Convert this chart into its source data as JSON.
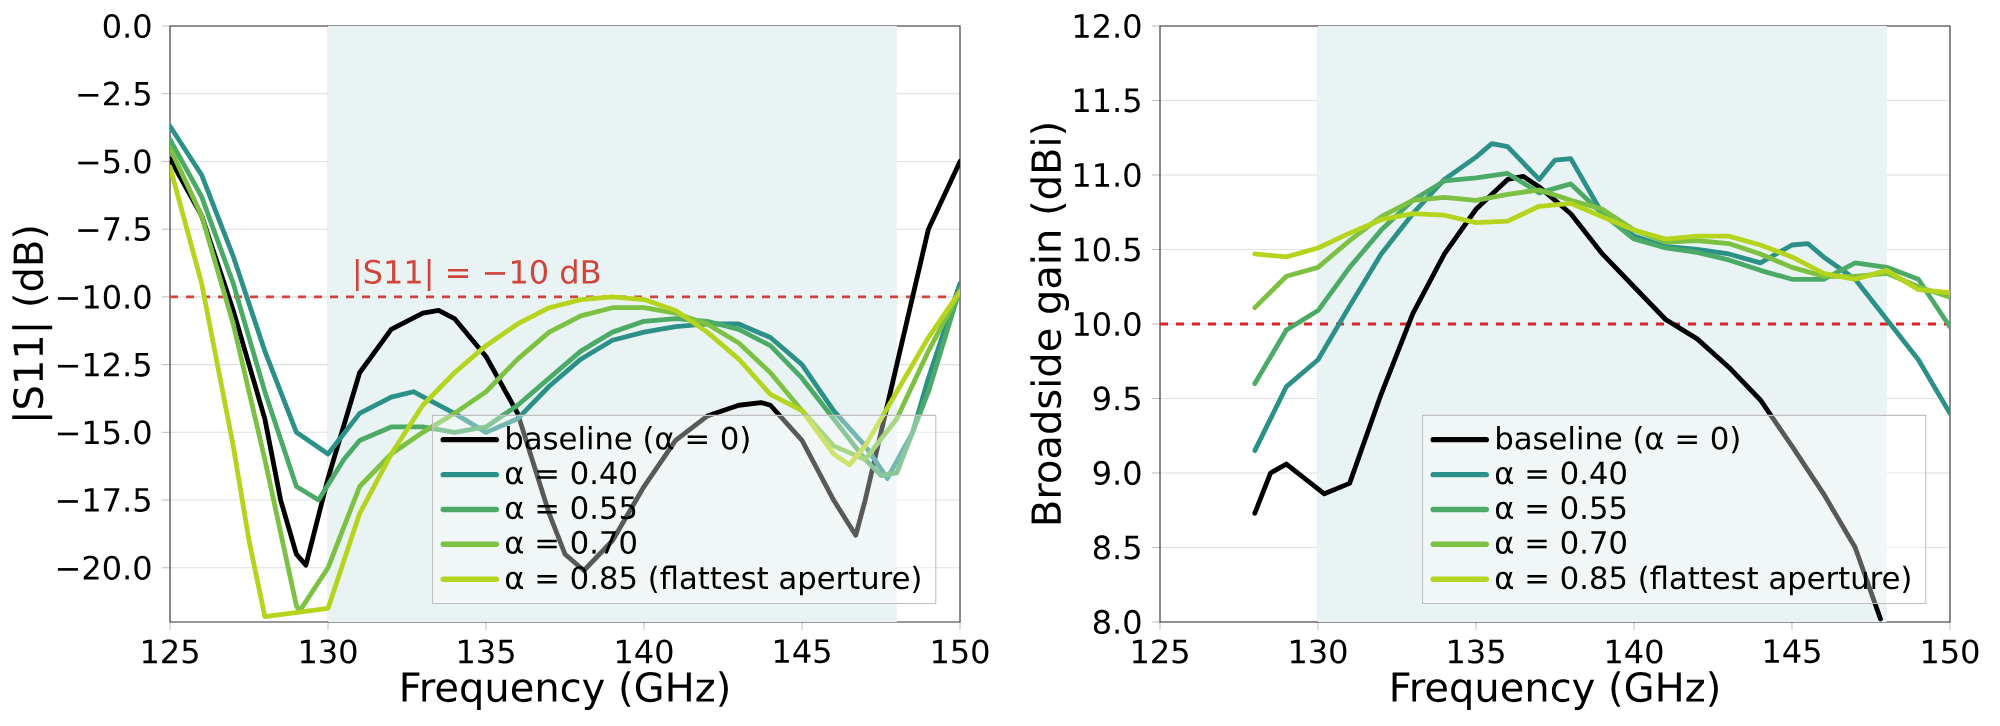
{
  "chart_data": [
    {
      "type": "line",
      "xlabel": "Frequency (GHz)",
      "ylabel": "|S11| (dB)",
      "xlim": [
        125,
        150
      ],
      "ylim": [
        -22,
        0
      ],
      "xticks": [
        125,
        130,
        135,
        140,
        145,
        150
      ],
      "yticks": [
        {
          "value": 0,
          "label": "0.0"
        },
        {
          "value": -2.5,
          "label": "−2.5"
        },
        {
          "value": -5,
          "label": "−5.0"
        },
        {
          "value": -7.5,
          "label": "−7.5"
        },
        {
          "value": -10,
          "label": "−10.0"
        },
        {
          "value": -12.5,
          "label": "−12.5"
        },
        {
          "value": -15,
          "label": "−15.0"
        },
        {
          "value": -17.5,
          "label": "−17.5"
        },
        {
          "value": -20,
          "label": "−20.0"
        }
      ],
      "grid": true,
      "legend": "bottom right",
      "bands": [
        {
          "axis": "x",
          "from": 130,
          "to": 148,
          "color": "#eaf3f3"
        }
      ],
      "ref_lines": [
        {
          "axis": "y",
          "value": -10,
          "label": "|S11| = −10 dB",
          "color": "#d0443a",
          "line_style": "dashed"
        }
      ],
      "series": [
        {
          "name": "baseline (α = 0)",
          "color": "#000000",
          "x": [
            125,
            126,
            127,
            128,
            128.5,
            129,
            129.3,
            130,
            131,
            132,
            133,
            133.5,
            134,
            135,
            136,
            137,
            137.5,
            138.1,
            139,
            140,
            141,
            142,
            143,
            143.7,
            144,
            145,
            146,
            146.7,
            147,
            148,
            149,
            150
          ],
          "values": [
            -4.9,
            -7.0,
            -10.5,
            -14.5,
            -17.5,
            -19.5,
            -19.9,
            -16.7,
            -12.8,
            -11.2,
            -10.6,
            -10.5,
            -10.8,
            -12.2,
            -14.3,
            -18.0,
            -19.5,
            -20.1,
            -19.0,
            -17.0,
            -15.3,
            -14.4,
            -14.0,
            -13.9,
            -14.0,
            -15.3,
            -17.5,
            -18.8,
            -17.5,
            -12.5,
            -7.5,
            -5.0
          ]
        },
        {
          "name": "α = 0.40",
          "color": "#2a9088",
          "x": [
            125,
            126,
            127,
            128,
            129,
            130,
            131,
            132,
            132.7,
            134,
            135,
            136,
            137,
            138,
            139,
            140,
            141,
            142,
            143,
            144,
            145,
            146,
            147,
            147.7,
            148.5,
            149,
            150
          ],
          "values": [
            -3.7,
            -5.5,
            -8.5,
            -12.0,
            -15.0,
            -15.8,
            -14.3,
            -13.7,
            -13.5,
            -14.3,
            -15.0,
            -14.5,
            -13.3,
            -12.3,
            -11.6,
            -11.3,
            -11.1,
            -11.0,
            -11.0,
            -11.5,
            -12.5,
            -14.2,
            -15.5,
            -16.7,
            -15.0,
            -13.0,
            -9.5
          ]
        },
        {
          "name": "α = 0.55",
          "color": "#4aaa66",
          "x": [
            125,
            126,
            127,
            128,
            129,
            129.7,
            130.5,
            131,
            132,
            133,
            134,
            135,
            136,
            137,
            138,
            139,
            140,
            141,
            142,
            143,
            144,
            145,
            146,
            147,
            147.5,
            148,
            149,
            150
          ],
          "values": [
            -4.2,
            -6.3,
            -9.5,
            -13.5,
            -17.0,
            -17.5,
            -16.0,
            -15.3,
            -14.8,
            -14.8,
            -15.0,
            -14.8,
            -14.0,
            -13.0,
            -12.0,
            -11.3,
            -10.9,
            -10.8,
            -10.9,
            -11.2,
            -11.8,
            -13.0,
            -14.5,
            -16.0,
            -16.6,
            -16.5,
            -13.5,
            -9.7
          ]
        },
        {
          "name": "α = 0.70",
          "color": "#7cc142",
          "x": [
            125,
            126,
            127,
            128,
            129,
            129.1,
            130,
            131,
            132,
            133,
            134,
            135,
            136,
            137,
            138,
            139,
            140,
            141,
            142,
            143,
            144,
            145,
            146,
            147,
            148,
            149,
            150
          ],
          "values": [
            -4.5,
            -7.0,
            -11.0,
            -16.0,
            -21.4,
            -21.6,
            -20.0,
            -17.0,
            -15.8,
            -15.0,
            -14.3,
            -13.5,
            -12.3,
            -11.3,
            -10.7,
            -10.4,
            -10.4,
            -10.6,
            -11.0,
            -11.7,
            -12.8,
            -14.2,
            -15.5,
            -16.0,
            -14.5,
            -12.0,
            -9.8
          ]
        },
        {
          "name": "α = 0.85 (flattest aperture)",
          "color": "#b5d41e",
          "x": [
            125,
            126,
            127,
            127.5,
            128,
            130,
            131,
            132,
            133,
            134,
            135,
            136,
            137,
            138,
            139,
            140,
            141,
            142,
            143,
            144,
            145,
            146,
            146.5,
            147,
            148,
            149,
            150
          ],
          "values": [
            -5.2,
            -9.5,
            -15.5,
            -19.0,
            -21.8,
            -21.5,
            -18.0,
            -15.8,
            -14.0,
            -12.8,
            -11.8,
            -11.0,
            -10.4,
            -10.1,
            -10.0,
            -10.1,
            -10.5,
            -11.3,
            -12.3,
            -13.6,
            -14.2,
            -15.8,
            -16.2,
            -15.5,
            -13.5,
            -11.5,
            -9.8
          ]
        }
      ]
    },
    {
      "type": "line",
      "xlabel": "Frequency (GHz)",
      "ylabel": "Broadside gain (dBi)",
      "xlim": [
        125,
        150
      ],
      "ylim": [
        8,
        12
      ],
      "xticks": [
        125,
        130,
        135,
        140,
        145,
        150
      ],
      "yticks": [
        {
          "value": 8,
          "label": "8.0"
        },
        {
          "value": 8.5,
          "label": "8.5"
        },
        {
          "value": 9,
          "label": "9.0"
        },
        {
          "value": 9.5,
          "label": "9.5"
        },
        {
          "value": 10,
          "label": "10.0"
        },
        {
          "value": 10.5,
          "label": "10.5"
        },
        {
          "value": 11,
          "label": "11.0"
        },
        {
          "value": 11.5,
          "label": "11.5"
        },
        {
          "value": 12,
          "label": "12.0"
        }
      ],
      "grid": true,
      "legend": "bottom right",
      "bands": [
        {
          "axis": "x",
          "from": 130,
          "to": 148,
          "color": "#eaf3f3"
        }
      ],
      "ref_lines": [
        {
          "axis": "y",
          "value": 10,
          "color": "#d62728",
          "line_style": "dashed"
        }
      ],
      "series": [
        {
          "name": "baseline (α = 0)",
          "color": "#000000",
          "x": [
            128,
            128.5,
            129,
            130.2,
            131,
            132,
            133,
            134,
            135,
            136,
            136.5,
            137,
            138,
            139,
            140,
            141,
            142,
            143,
            144,
            145,
            146,
            147,
            147.8
          ],
          "values": [
            8.73,
            9.0,
            9.06,
            8.86,
            8.93,
            9.53,
            10.07,
            10.47,
            10.77,
            10.97,
            10.99,
            10.92,
            10.74,
            10.47,
            10.25,
            10.03,
            9.9,
            9.71,
            9.49,
            9.18,
            8.86,
            8.5,
            8.02
          ]
        },
        {
          "name": "α = 0.40",
          "color": "#2a9088",
          "x": [
            128,
            129,
            130,
            131,
            132,
            133,
            134,
            135,
            135.5,
            136,
            137,
            137.5,
            138,
            139,
            140,
            141,
            142,
            143,
            144,
            145,
            145.5,
            146,
            147,
            148,
            149,
            150
          ],
          "values": [
            9.15,
            9.58,
            9.76,
            10.12,
            10.47,
            10.74,
            10.97,
            11.12,
            11.21,
            11.19,
            10.97,
            11.1,
            11.11,
            10.74,
            10.59,
            10.52,
            10.5,
            10.47,
            10.41,
            10.53,
            10.54,
            10.45,
            10.3,
            10.03,
            9.76,
            9.4
          ]
        },
        {
          "name": "α = 0.55",
          "color": "#4aaa66",
          "x": [
            128,
            129,
            130,
            131,
            132,
            133,
            134,
            135,
            136,
            137,
            138,
            139,
            140,
            141,
            142,
            143,
            144,
            145,
            146,
            147,
            148,
            149,
            150
          ],
          "values": [
            9.6,
            9.96,
            10.09,
            10.38,
            10.63,
            10.83,
            10.96,
            10.98,
            11.01,
            10.88,
            10.94,
            10.74,
            10.57,
            10.51,
            10.48,
            10.43,
            10.36,
            10.3,
            10.3,
            10.41,
            10.38,
            10.3,
            9.98
          ]
        },
        {
          "name": "α = 0.70",
          "color": "#7cc142",
          "x": [
            128,
            129,
            130,
            131,
            132,
            133,
            134,
            135,
            136,
            137,
            138,
            139,
            140,
            141,
            142,
            143,
            144,
            145,
            146,
            147,
            148,
            149,
            150
          ],
          "values": [
            10.11,
            10.32,
            10.38,
            10.56,
            10.72,
            10.83,
            10.85,
            10.83,
            10.87,
            10.9,
            10.83,
            10.77,
            10.63,
            10.55,
            10.56,
            10.54,
            10.47,
            10.38,
            10.32,
            10.32,
            10.34,
            10.25,
            10.18
          ]
        },
        {
          "name": "α = 0.85 (flattest aperture)",
          "color": "#b5d41e",
          "x": [
            128,
            129,
            130,
            131,
            132,
            133,
            134,
            135,
            136,
            137,
            138,
            139,
            140,
            141,
            142,
            143,
            144,
            145,
            146,
            147,
            148,
            149,
            150
          ],
          "values": [
            10.47,
            10.45,
            10.51,
            10.61,
            10.7,
            10.74,
            10.73,
            10.68,
            10.69,
            10.79,
            10.81,
            10.72,
            10.63,
            10.57,
            10.59,
            10.59,
            10.53,
            10.45,
            10.34,
            10.3,
            10.36,
            10.23,
            10.21
          ]
        }
      ]
    }
  ]
}
